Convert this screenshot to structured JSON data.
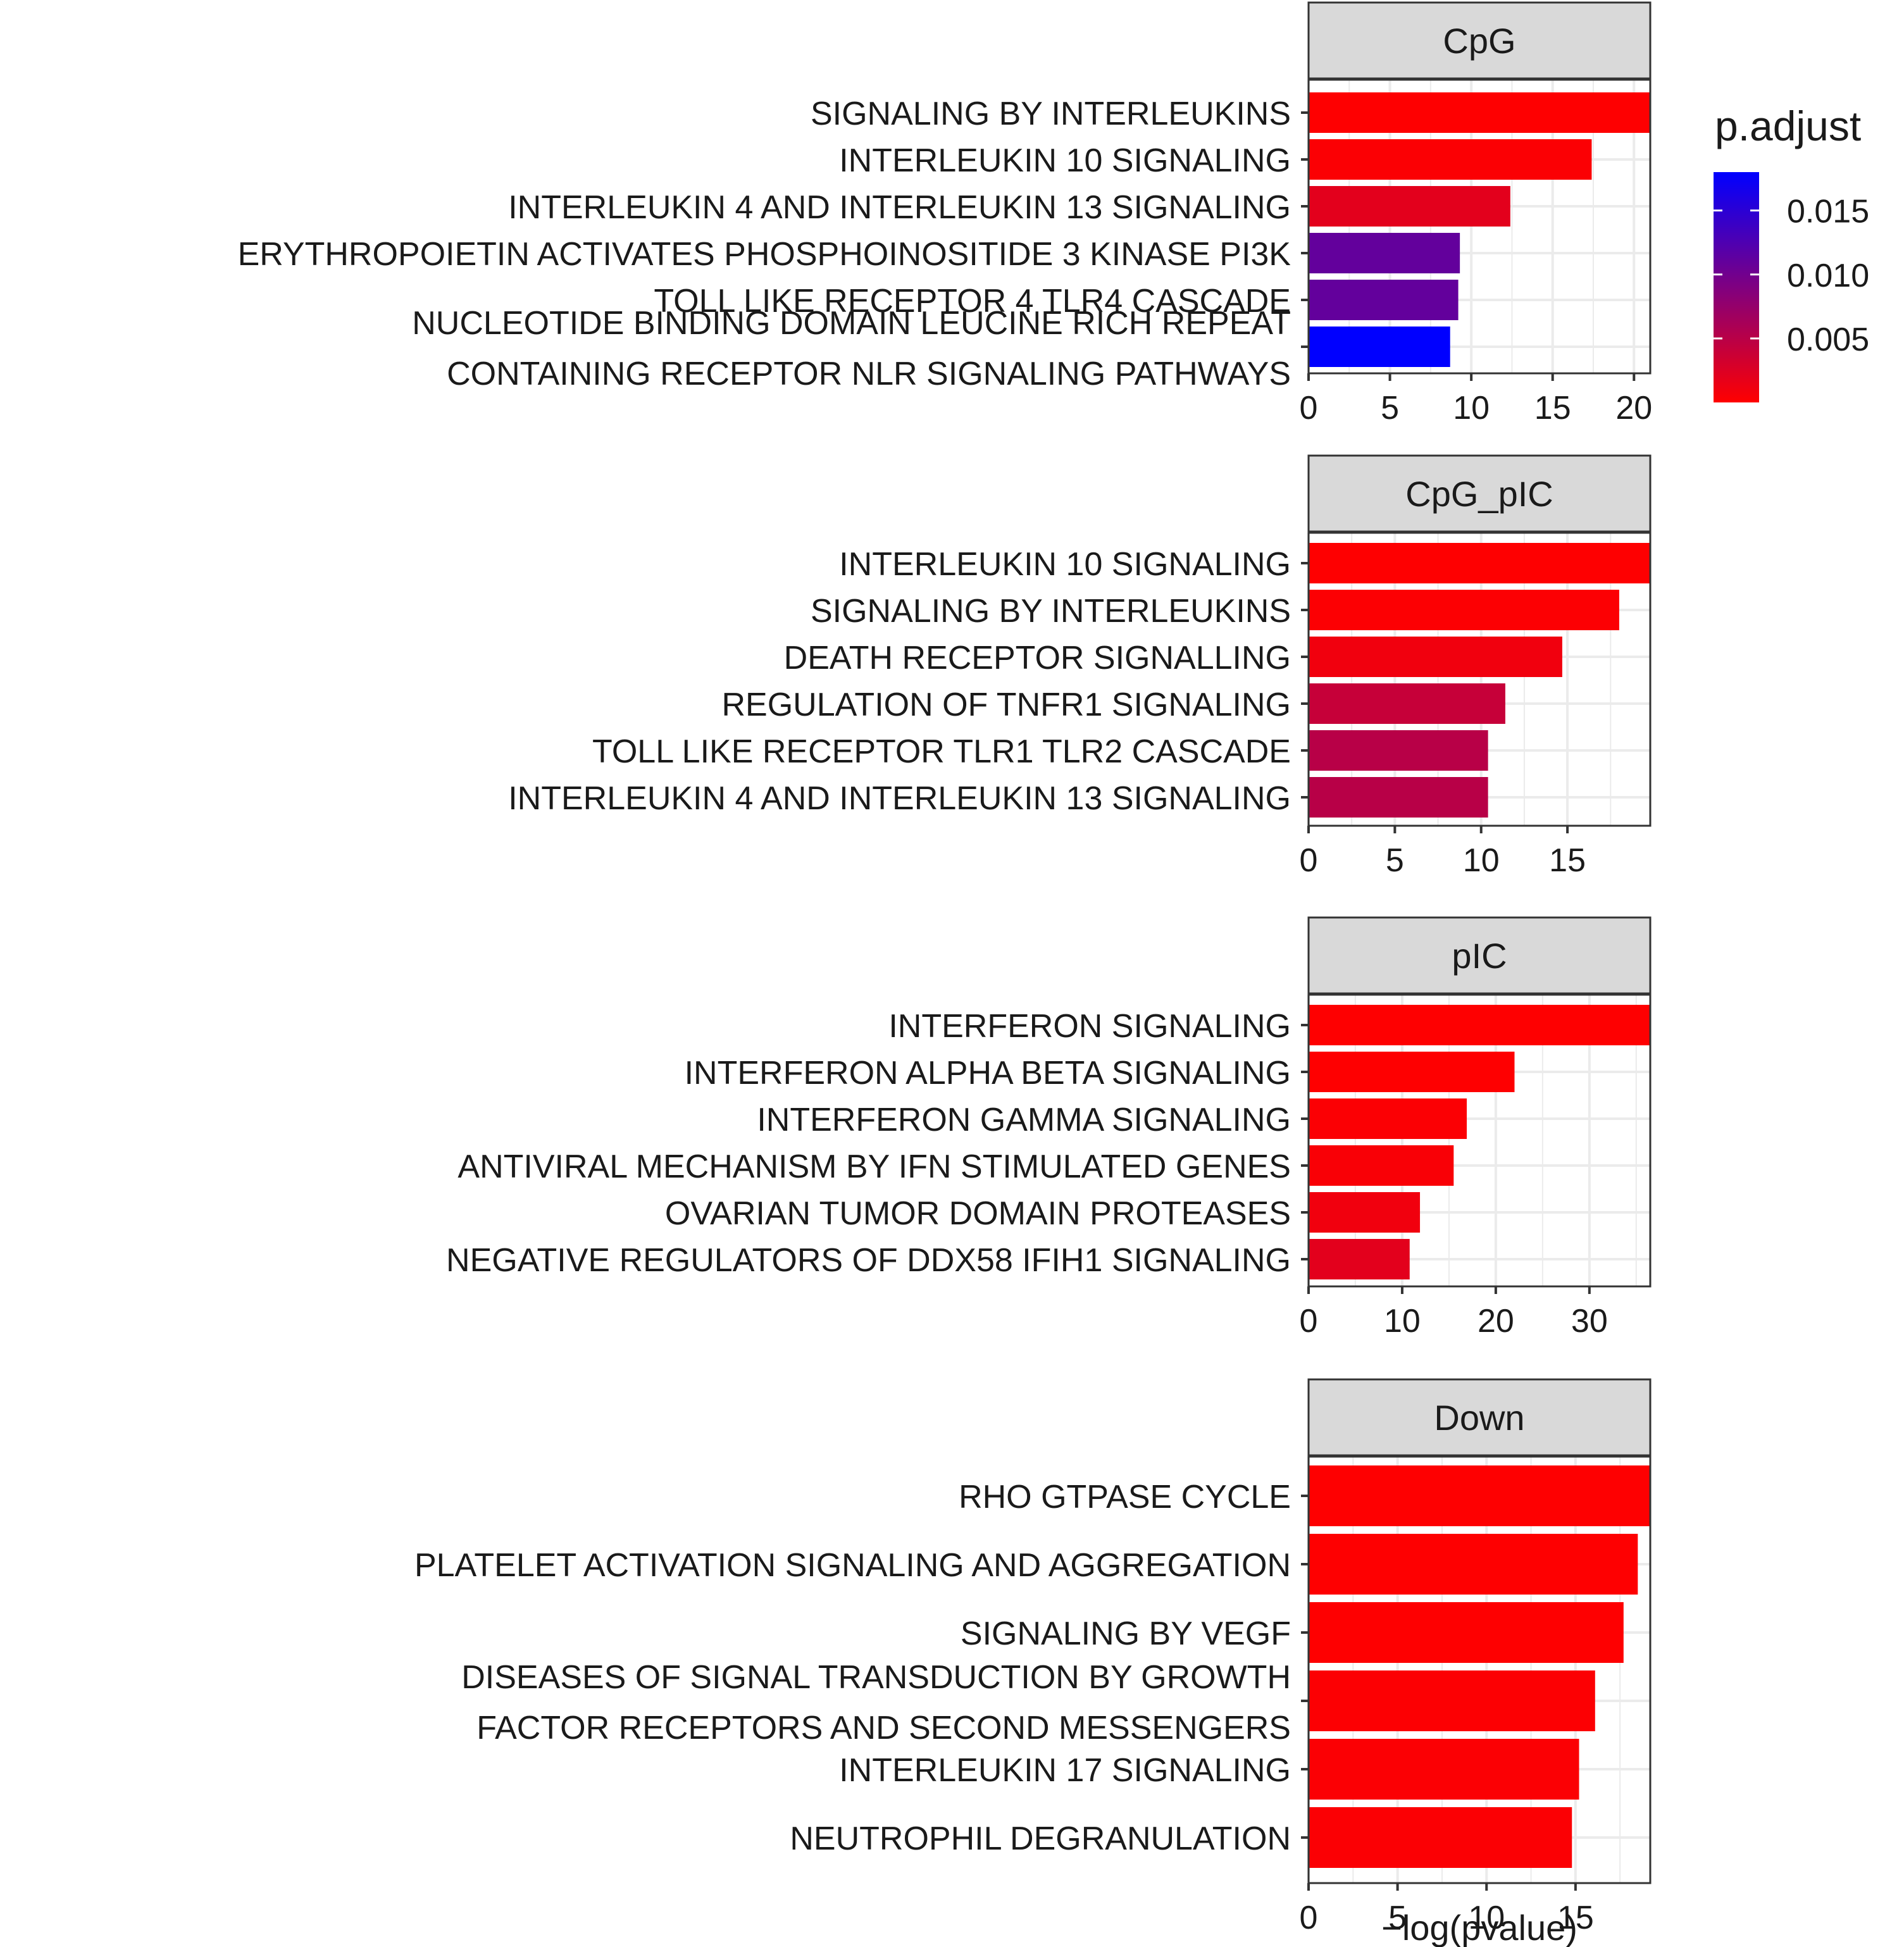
{
  "colors": {
    "low_padj": "#FF0000",
    "high_padj": "#0000FF",
    "strip_fill": "#D9D9D9",
    "panel_border": "#333333",
    "grid": "#EBEBEB"
  },
  "chart_data": {
    "type": "bar",
    "orientation": "horizontal",
    "xlabel": "−log(pvalue)",
    "ylabel": "",
    "grid": true,
    "legend": {
      "title": "p.adjust",
      "type": "colorbar",
      "placement": "top-right",
      "range": [
        0,
        0.018
      ],
      "ticks": [
        0.015,
        0.01,
        0.005
      ],
      "tick_labels": [
        "0.015",
        "0.010",
        "0.005"
      ]
    },
    "panels": [
      {
        "facet": "CpG",
        "xlim": [
          0,
          21
        ],
        "xticks": [
          0,
          5,
          10,
          15,
          20
        ],
        "xtick_labels": [
          "0",
          "5",
          "10",
          "15",
          "20"
        ],
        "categories": [
          [
            "SIGNALING BY INTERLEUKINS"
          ],
          [
            "INTERLEUKIN 10 SIGNALING"
          ],
          [
            "INTERLEUKIN 4 AND INTERLEUKIN 13 SIGNALING"
          ],
          [
            "ERYTHROPOIETIN ACTIVATES PHOSPHOINOSITIDE 3 KINASE PI3K"
          ],
          [
            "TOLL LIKE RECEPTOR 4 TLR4 CASCADE"
          ],
          [
            "NUCLEOTIDE BINDING DOMAIN LEUCINE RICH REPEAT",
            "CONTAINING RECEPTOR NLR SIGNALING PATHWAYS"
          ]
        ],
        "values": [
          21.0,
          17.4,
          12.4,
          9.3,
          9.2,
          8.7
        ],
        "p_adjust": [
          0.0001,
          0.0003,
          0.002,
          0.011,
          0.011,
          0.018
        ]
      },
      {
        "facet": "CpG_pIC",
        "xlim": [
          0,
          19.8
        ],
        "xticks": [
          0,
          5,
          10,
          15
        ],
        "xtick_labels": [
          "0",
          "5",
          "10",
          "15"
        ],
        "categories": [
          [
            "INTERLEUKIN 10 SIGNALING"
          ],
          [
            "SIGNALING BY INTERLEUKINS"
          ],
          [
            "DEATH RECEPTOR SIGNALLING"
          ],
          [
            "REGULATION OF TNFR1 SIGNALING"
          ],
          [
            "TOLL LIKE RECEPTOR TLR1 TLR2 CASCADE"
          ],
          [
            "INTERLEUKIN 4 AND INTERLEUKIN 13 SIGNALING"
          ]
        ],
        "values": [
          19.8,
          18.0,
          14.7,
          11.4,
          10.4,
          10.4
        ],
        "p_adjust": [
          0.0001,
          0.0002,
          0.001,
          0.004,
          0.005,
          0.005
        ]
      },
      {
        "facet": "pIC",
        "xlim": [
          0,
          36.5
        ],
        "xticks": [
          0,
          10,
          20,
          30
        ],
        "xtick_labels": [
          "0",
          "10",
          "20",
          "30"
        ],
        "categories": [
          [
            "INTERFERON SIGNALING"
          ],
          [
            "INTERFERON ALPHA BETA SIGNALING"
          ],
          [
            "INTERFERON GAMMA SIGNALING"
          ],
          [
            "ANTIVIRAL MECHANISM BY IFN STIMULATED GENES"
          ],
          [
            "OVARIAN TUMOR DOMAIN PROTEASES"
          ],
          [
            "NEGATIVE REGULATORS OF DDX58 IFIH1 SIGNALING"
          ]
        ],
        "values": [
          36.5,
          22.0,
          16.9,
          15.5,
          11.9,
          10.8
        ],
        "p_adjust": [
          0.0001,
          0.0001,
          0.0003,
          0.0004,
          0.001,
          0.002
        ]
      },
      {
        "facet": "Down",
        "xlim": [
          0,
          19.2
        ],
        "xticks": [
          0,
          5,
          10,
          15
        ],
        "xtick_labels": [
          "0",
          "5",
          "10",
          "15"
        ],
        "categories": [
          [
            "RHO GTPASE CYCLE"
          ],
          [
            "PLATELET ACTIVATION SIGNALING AND AGGREGATION"
          ],
          [
            "SIGNALING BY VEGF"
          ],
          [
            "DISEASES OF SIGNAL TRANSDUCTION BY GROWTH",
            "FACTOR RECEPTORS AND SECOND MESSENGERS"
          ],
          [
            "INTERLEUKIN 17 SIGNALING"
          ],
          [
            "NEUTROPHIL DEGRANULATION"
          ]
        ],
        "values": [
          19.2,
          18.5,
          17.7,
          16.1,
          15.2,
          14.8
        ],
        "p_adjust": [
          0.0001,
          0.0001,
          0.0001,
          0.0002,
          0.0003,
          0.0003
        ]
      }
    ]
  }
}
